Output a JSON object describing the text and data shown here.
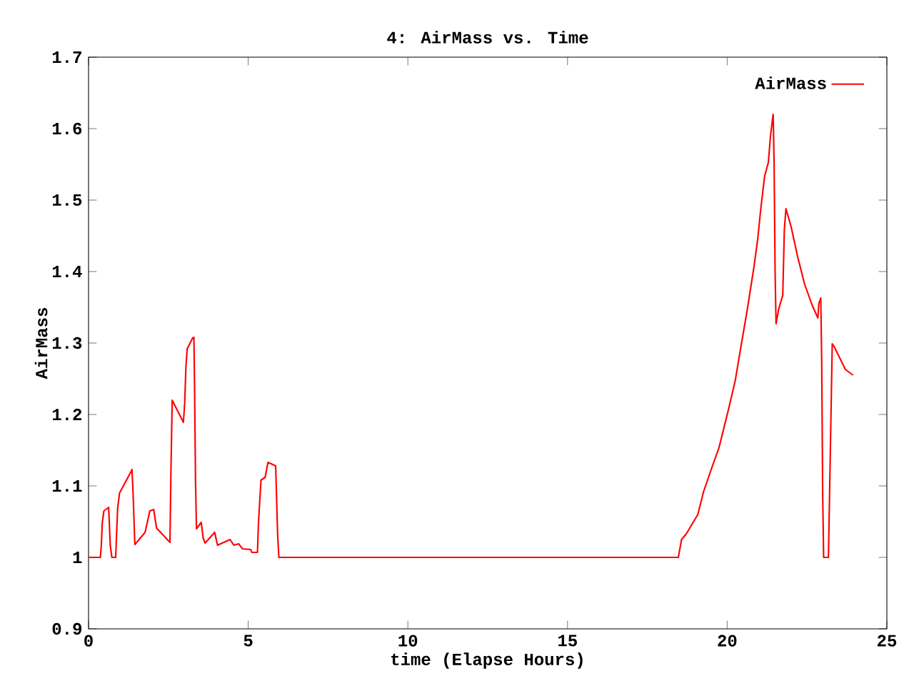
{
  "chart_data": {
    "type": "line",
    "title": "4: AirMass vs. Time",
    "xlabel": "time (Elapse Hours)",
    "ylabel": "AirMass",
    "xlim": [
      0,
      25
    ],
    "xticks": [
      0,
      5,
      10,
      15,
      20,
      25
    ],
    "ylim": [
      0.9,
      1.7
    ],
    "yticks": [
      0.9,
      1,
      1.1,
      1.2,
      1.3,
      1.4,
      1.5,
      1.6,
      1.7
    ],
    "legend": "top right",
    "grid": false,
    "marker": "none",
    "line_style": "solid",
    "series": [
      {
        "name": "AirMass",
        "color": "#ff0000",
        "x": [
          0,
          0.37,
          0.4,
          0.43,
          0.48,
          0.63,
          0.68,
          0.73,
          0.85,
          0.91,
          0.97,
          1.33,
          1.36,
          1.39,
          1.45,
          1.77,
          1.92,
          2.04,
          2.13,
          2.55,
          2.58,
          2.62,
          2.97,
          3.01,
          3.05,
          3.09,
          3.26,
          3.3,
          3.32,
          3.35,
          3.38,
          3.53,
          3.59,
          3.65,
          3.95,
          4.04,
          4.43,
          4.55,
          4.7,
          4.82,
          5.08,
          5.11,
          5.29,
          5.32,
          5.4,
          5.53,
          5.62,
          5.86,
          5.92,
          5.96,
          18.47,
          18.57,
          18.72,
          19.08,
          19.26,
          19.53,
          19.74,
          20.04,
          20.25,
          20.45,
          20.63,
          20.84,
          20.96,
          21.05,
          21.17,
          21.29,
          21.35,
          21.41,
          21.44,
          21.47,
          21.5,
          21.53,
          21.61,
          21.74,
          21.79,
          21.84,
          22.0,
          22.21,
          22.42,
          22.66,
          22.84,
          22.87,
          22.93,
          22.96,
          22.99,
          23.02,
          23.17,
          23.2,
          23.26,
          23.29,
          23.35,
          23.7,
          23.94
        ],
        "values": [
          1.0,
          1.0,
          1.017,
          1.048,
          1.065,
          1.07,
          1.017,
          1.0,
          1.0,
          1.068,
          1.09,
          1.12,
          1.123,
          1.095,
          1.018,
          1.035,
          1.065,
          1.067,
          1.041,
          1.021,
          1.12,
          1.22,
          1.189,
          1.215,
          1.267,
          1.292,
          1.307,
          1.308,
          1.24,
          1.107,
          1.04,
          1.049,
          1.027,
          1.02,
          1.035,
          1.017,
          1.025,
          1.017,
          1.019,
          1.012,
          1.011,
          1.007,
          1.007,
          1.047,
          1.108,
          1.112,
          1.133,
          1.128,
          1.033,
          1.0,
          1.0,
          1.025,
          1.033,
          1.06,
          1.092,
          1.127,
          1.153,
          1.207,
          1.247,
          1.3,
          1.347,
          1.407,
          1.447,
          1.487,
          1.533,
          1.553,
          1.587,
          1.61,
          1.62,
          1.547,
          1.4,
          1.327,
          1.347,
          1.367,
          1.459,
          1.488,
          1.463,
          1.42,
          1.383,
          1.353,
          1.335,
          1.355,
          1.363,
          1.273,
          1.09,
          1.0,
          1.0,
          1.073,
          1.223,
          1.299,
          1.295,
          1.263,
          1.255
        ]
      }
    ]
  }
}
